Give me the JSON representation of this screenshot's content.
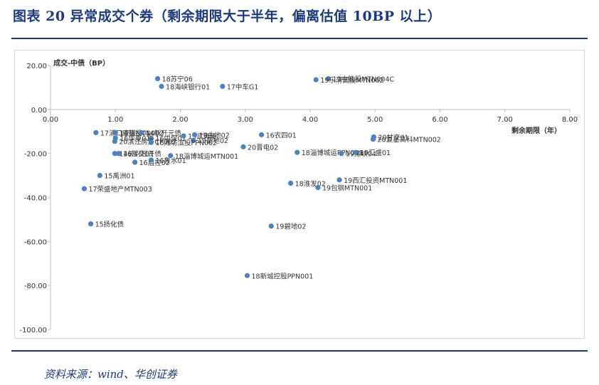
{
  "title": "图表 20   异常成交个券（剩余期限大于半年，偏离估值 10BP 以上）",
  "source": "资料来源：wind、华创证券",
  "colors": {
    "accent": "#1f3a7a",
    "marker": "#4f81bd",
    "axis": "#bfbfbf",
    "text": "#333333"
  },
  "chart_data": {
    "type": "scatter",
    "title": "",
    "xlabel": "剩余期限（年）",
    "ylabel": "成交-中债（BP）",
    "xlim": [
      0,
      8
    ],
    "ylim": [
      -100,
      20
    ],
    "xticks": [
      "0.00",
      "1.00",
      "2.00",
      "3.00",
      "4.00",
      "5.00",
      "6.00",
      "7.00",
      "8.00"
    ],
    "yticks": [
      "20.00",
      "0.00",
      "-20.00",
      "-40.00",
      "-60.00",
      "-80.00",
      "-100.00"
    ],
    "grid": false,
    "legend": "none",
    "points": [
      {
        "label": "18苏宁06",
        "x": 1.65,
        "y": 14.0
      },
      {
        "label": "18海峡银行01",
        "x": 1.71,
        "y": 10.5
      },
      {
        "label": "17中车G1",
        "x": 2.65,
        "y": 10.5
      },
      {
        "label": "19中铁股MTN004C",
        "x": 4.28,
        "y": 14.0
      },
      {
        "label": "19乐清国投MTN002",
        "x": 4.09,
        "y": 13.5
      },
      {
        "label": "17浦口康居MTN002",
        "x": 0.7,
        "y": -10.5
      },
      {
        "label": "16镇投01",
        "x": 1.0,
        "y": -10.5
      },
      {
        "label": "14新开元债",
        "x": 1.4,
        "y": -10.5
      },
      {
        "label": "16中保01",
        "x": 1.55,
        "y": -13.0
      },
      {
        "label": "15武夷债",
        "x": 2.05,
        "y": -12.0
      },
      {
        "label": "19曲地02",
        "x": 2.22,
        "y": -11.5
      },
      {
        "label": "19曲地02",
        "x": 2.2,
        "y": -14.0
      },
      {
        "label": "20滨江房产CP002",
        "x": 0.99,
        "y": -14.5
      },
      {
        "label": "16华夏01",
        "x": 1.0,
        "y": -13.0
      },
      {
        "label": "16潍坊滨投PPN002",
        "x": 1.55,
        "y": -15.0
      },
      {
        "label": "14长兴经开债",
        "x": 0.99,
        "y": -20.0
      },
      {
        "label": "16常交01",
        "x": 1.05,
        "y": -20.0
      },
      {
        "label": "18淄博城运MTN001",
        "x": 1.85,
        "y": -21.0
      },
      {
        "label": "16眉控02",
        "x": 1.3,
        "y": -24.0
      },
      {
        "label": "16鲁水01",
        "x": 1.55,
        "y": -23.0
      },
      {
        "label": "15禹洲01",
        "x": 0.76,
        "y": -30.0
      },
      {
        "label": "17荣盛地产MTN003",
        "x": 0.52,
        "y": -36.0
      },
      {
        "label": "15扬化债",
        "x": 0.62,
        "y": -52.0
      },
      {
        "label": "16农四01",
        "x": 3.25,
        "y": -11.5
      },
      {
        "label": "20晋电02",
        "x": 2.97,
        "y": -17.0
      },
      {
        "label": "18淄博城运PPN001",
        "x": 3.8,
        "y": -19.5
      },
      {
        "label": "19豫峡04",
        "x": 4.48,
        "y": -20.0
      },
      {
        "label": "19汇盛01",
        "x": 4.7,
        "y": -19.5
      },
      {
        "label": "20甘交01",
        "x": 4.98,
        "y": -12.5
      },
      {
        "label": "20复星高科MTN002",
        "x": 4.97,
        "y": -13.5
      },
      {
        "label": "18淮发02",
        "x": 3.7,
        "y": -33.5
      },
      {
        "label": "19西汇投资MTN001",
        "x": 4.45,
        "y": -32.0
      },
      {
        "label": "19包钢MTN001",
        "x": 4.12,
        "y": -35.5
      },
      {
        "label": "19碧地02",
        "x": 3.4,
        "y": -53.0
      },
      {
        "label": "18新城控股PPN001",
        "x": 3.03,
        "y": -75.5
      }
    ]
  }
}
